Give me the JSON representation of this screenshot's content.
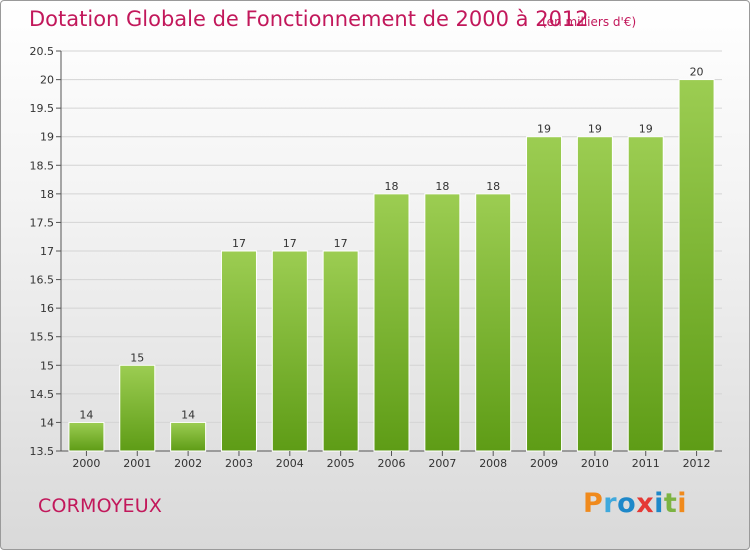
{
  "header": {
    "title": "Dotation Globale de Fonctionnement de 2000 à 2012",
    "subtitle": "(en milliers d'€)"
  },
  "footer": {
    "commune": "CORMOYEUX",
    "logo_letters": [
      "P",
      "r",
      "o",
      "x",
      "i",
      "t",
      "i"
    ]
  },
  "colors": {
    "title": "#c2185b",
    "bar_top": "#9ccd52",
    "bar_bottom": "#5e9c16",
    "grid": "#d4d4d4"
  },
  "chart_data": {
    "type": "bar",
    "title": "Dotation Globale de Fonctionnement de 2000 à 2012",
    "subtitle": "(en milliers d'€)",
    "xlabel": "",
    "ylabel": "",
    "categories": [
      "2000",
      "2001",
      "2002",
      "2003",
      "2004",
      "2005",
      "2006",
      "2007",
      "2008",
      "2009",
      "2010",
      "2011",
      "2012"
    ],
    "values": [
      14,
      15,
      14,
      17,
      17,
      17,
      18,
      18,
      18,
      19,
      19,
      19,
      20
    ],
    "ylim": [
      13.5,
      20.5
    ],
    "yticks": [
      "13.5",
      "14",
      "14.5",
      "15",
      "15.5",
      "16",
      "16.5",
      "17",
      "17.5",
      "18",
      "18.5",
      "19",
      "19.5",
      "20",
      "20.5"
    ],
    "grid": true,
    "legend": "none"
  }
}
